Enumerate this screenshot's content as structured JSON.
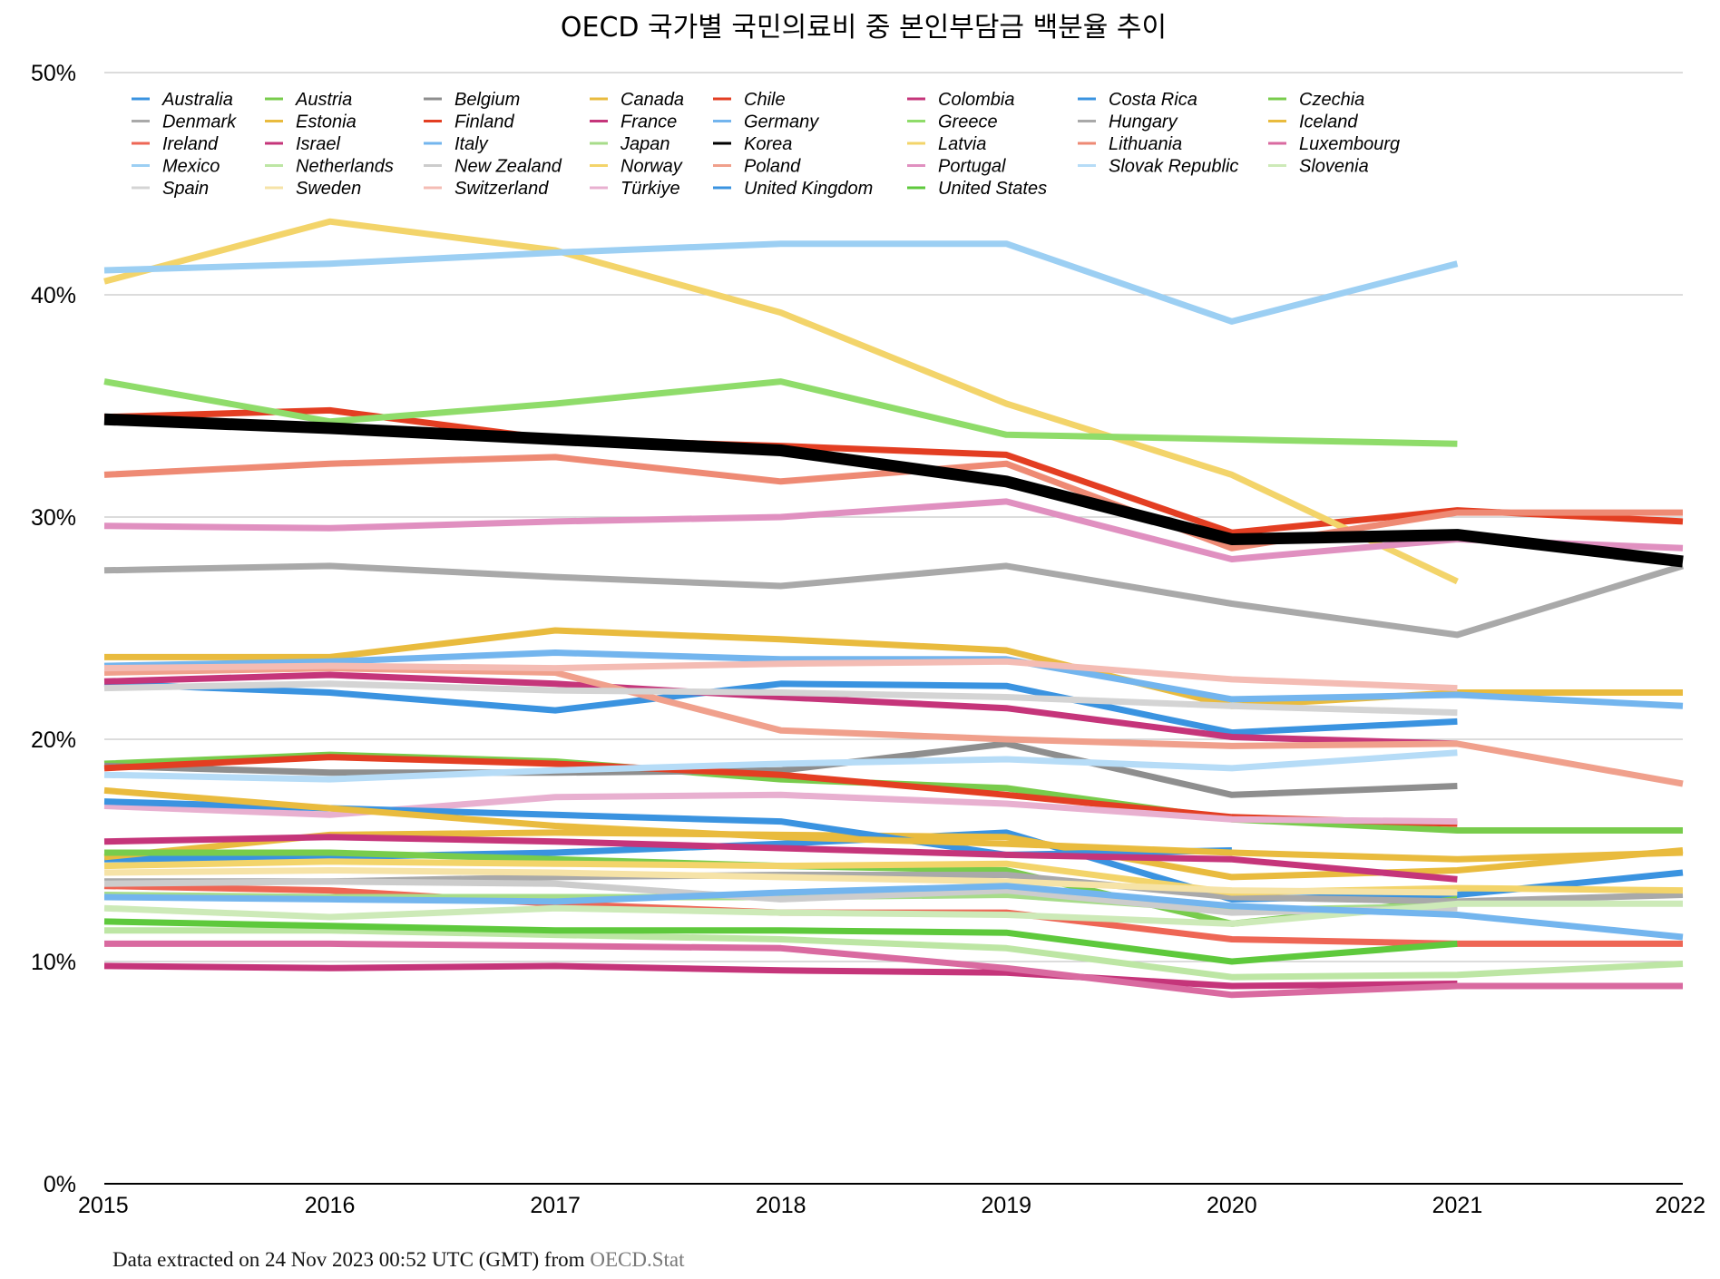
{
  "chart_data": {
    "type": "line",
    "title": "OECD 국가별 국민의료비 중 본인부담금 백분율 추이",
    "x": [
      "2015",
      "2016",
      "2017",
      "2018",
      "2019",
      "2020",
      "2021",
      "2022"
    ],
    "ylim": [
      0,
      50
    ],
    "yticks": [
      "0%",
      "10%",
      "20%",
      "30%",
      "40%",
      "50%"
    ],
    "grid": true,
    "legend_position": "top, 8 columns",
    "series": [
      {
        "name": "Australia",
        "color": "#3a93e0",
        "values": [
          14.6,
          14.7,
          14.9,
          15.3,
          15.8,
          12.8,
          13.0,
          14.0
        ]
      },
      {
        "name": "Austria",
        "color": "#78cc4c",
        "values": [
          18.9,
          19.3,
          19.0,
          18.2,
          17.8,
          16.4,
          15.9,
          15.9
        ]
      },
      {
        "name": "Belgium",
        "color": "#8e8e8e",
        "values": [
          18.8,
          18.5,
          18.5,
          18.6,
          19.8,
          17.5,
          17.9,
          null
        ]
      },
      {
        "name": "Canada",
        "color": "#e9bb3e",
        "values": [
          14.7,
          15.7,
          15.8,
          15.7,
          15.6,
          13.8,
          14.1,
          15.0
        ]
      },
      {
        "name": "Chile",
        "color": "#e33e22",
        "values": [
          34.5,
          34.8,
          33.5,
          33.2,
          32.8,
          29.3,
          30.3,
          29.8
        ]
      },
      {
        "name": "Colombia",
        "color": "#c5357a",
        "values": [
          9.8,
          9.7,
          9.8,
          9.6,
          9.5,
          8.9,
          9.0,
          null
        ]
      },
      {
        "name": "Costa Rica",
        "color": "#3a93e0",
        "values": [
          22.5,
          22.1,
          21.3,
          22.5,
          22.4,
          20.3,
          20.8,
          null
        ]
      },
      {
        "name": "Czechia",
        "color": "#78cc4c",
        "values": [
          14.9,
          14.9,
          14.6,
          14.3,
          14.1,
          11.7,
          12.8,
          null
        ]
      },
      {
        "name": "Denmark",
        "color": "#a9a9a9",
        "values": [
          13.6,
          13.6,
          13.8,
          13.9,
          13.9,
          12.9,
          12.7,
          13.0
        ]
      },
      {
        "name": "Estonia",
        "color": "#e9bb3e",
        "values": [
          23.7,
          23.7,
          24.9,
          24.5,
          24.0,
          21.5,
          22.1,
          22.1
        ]
      },
      {
        "name": "Finland",
        "color": "#e33e22",
        "values": [
          18.7,
          19.2,
          18.9,
          18.4,
          17.5,
          16.5,
          16.2,
          null
        ]
      },
      {
        "name": "Israel",
        "color": "#c5357a",
        "values": [
          22.6,
          22.9,
          22.5,
          21.9,
          21.4,
          20.1,
          19.8,
          null
        ]
      },
      {
        "name": "Ireland",
        "color": "#ee6655",
        "values": [
          13.4,
          13.2,
          12.6,
          12.2,
          12.2,
          11.0,
          10.8,
          10.8
        ]
      },
      {
        "name": "Italy",
        "color": "#73b5ee",
        "values": [
          23.3,
          23.5,
          23.9,
          23.6,
          23.6,
          21.8,
          22.0,
          21.5
        ]
      },
      {
        "name": "Japan",
        "color": "#a7dc8a",
        "values": [
          13.0,
          12.9,
          12.9,
          12.9,
          13.0,
          12.3,
          12.5,
          null
        ]
      },
      {
        "name": "Korea",
        "color": "#000000",
        "values": [
          34.4,
          34.0,
          33.5,
          33.0,
          31.6,
          29.0,
          29.2,
          28.0
        ]
      },
      {
        "name": "Latvia",
        "color": "#f3d46a",
        "values": [
          40.6,
          43.3,
          42.0,
          39.2,
          35.1,
          31.9,
          27.1,
          null
        ]
      },
      {
        "name": "Lithuania",
        "color": "#ee8a74",
        "values": [
          31.9,
          32.4,
          32.7,
          31.6,
          32.4,
          28.6,
          30.2,
          30.2
        ]
      },
      {
        "name": "Luxembourg",
        "color": "#d96aa0",
        "values": [
          10.8,
          10.8,
          10.7,
          10.6,
          9.7,
          8.5,
          8.9,
          8.9
        ]
      },
      {
        "name": "Mexico",
        "color": "#9ccff3",
        "values": [
          41.1,
          41.4,
          41.9,
          42.3,
          42.3,
          38.8,
          41.4,
          null
        ]
      },
      {
        "name": "Netherlands",
        "color": "#bde6a4",
        "values": [
          11.4,
          11.4,
          11.2,
          11.0,
          10.6,
          9.3,
          9.4,
          9.9
        ]
      },
      {
        "name": "New Zealand",
        "color": "#cccccc",
        "values": [
          13.5,
          13.6,
          13.5,
          12.8,
          13.2,
          12.2,
          12.4,
          null
        ]
      },
      {
        "name": "Norway",
        "color": "#f3d46a",
        "values": [
          14.3,
          14.5,
          14.4,
          14.3,
          14.4,
          13.1,
          13.3,
          13.2
        ]
      },
      {
        "name": "Poland",
        "color": "#f0a08c",
        "values": [
          23.0,
          23.2,
          23.0,
          20.4,
          20.0,
          19.7,
          19.8,
          18.0
        ]
      },
      {
        "name": "Portugal",
        "color": "#e090c0",
        "values": [
          29.6,
          29.5,
          29.8,
          30.0,
          30.7,
          28.1,
          29.0,
          28.6
        ]
      },
      {
        "name": "Slovak Republic",
        "color": "#b6dcf7",
        "values": [
          18.4,
          18.2,
          18.6,
          18.9,
          19.1,
          18.7,
          19.4,
          null
        ]
      },
      {
        "name": "Slovenia",
        "color": "#cdeab8",
        "values": [
          12.4,
          12.0,
          12.4,
          12.2,
          12.1,
          11.7,
          12.6,
          12.6
        ]
      },
      {
        "name": "Spain",
        "color": "#d4d4d4",
        "values": [
          22.3,
          22.5,
          22.2,
          22.1,
          21.9,
          21.5,
          21.2,
          null
        ]
      },
      {
        "name": "Sweden",
        "color": "#f6e3a7",
        "values": [
          14.0,
          14.1,
          14.0,
          13.8,
          13.6,
          13.2,
          13.1,
          null
        ]
      },
      {
        "name": "Switzerland",
        "color": "#f4bcb4",
        "values": [
          23.2,
          23.3,
          23.2,
          23.4,
          23.5,
          22.7,
          22.3,
          null
        ]
      },
      {
        "name": "Türkiye",
        "color": "#e8b0d0",
        "values": [
          17.0,
          16.6,
          17.4,
          17.5,
          17.1,
          16.4,
          16.3,
          null
        ]
      },
      {
        "name": "United Kingdom",
        "color": "#3a93e0",
        "values": [
          17.2,
          16.9,
          16.6,
          16.3,
          14.8,
          15.0,
          null,
          null
        ]
      },
      {
        "name": "United States",
        "color": "#5ec93c",
        "values": [
          11.8,
          11.6,
          11.4,
          11.4,
          11.3,
          10.0,
          10.8,
          null
        ]
      },
      {
        "name": "Germany",
        "color": "#73b5ee",
        "values": [
          12.9,
          12.8,
          12.7,
          13.1,
          13.4,
          12.5,
          12.1,
          11.1
        ]
      },
      {
        "name": "Hungary",
        "color": "#a9a9a9",
        "values": [
          27.6,
          27.8,
          27.3,
          26.9,
          27.8,
          26.1,
          24.7,
          27.8
        ]
      },
      {
        "name": "Greece",
        "color": "#8fdc6a",
        "values": [
          36.1,
          34.3,
          35.1,
          36.1,
          33.7,
          33.5,
          33.3,
          null
        ]
      },
      {
        "name": "Iceland",
        "color": "#e9bb3e",
        "values": [
          17.7,
          16.9,
          16.1,
          15.6,
          15.3,
          14.9,
          14.6,
          14.9
        ]
      },
      {
        "name": "France",
        "color": "#c5357a",
        "values": [
          15.4,
          15.6,
          15.4,
          15.1,
          14.8,
          14.6,
          13.7,
          null
        ]
      }
    ],
    "legend_order": [
      "Australia",
      "Austria",
      "Belgium",
      "Canada",
      "Chile",
      "Colombia",
      "Costa Rica",
      "Czechia",
      "Denmark",
      "Estonia",
      "Finland",
      "France",
      "Germany",
      "Greece",
      "Hungary",
      "Iceland",
      "Ireland",
      "Israel",
      "Italy",
      "Japan",
      "Korea",
      "Latvia",
      "Lithuania",
      "Luxembourg",
      "Mexico",
      "Netherlands",
      "New Zealand",
      "Norway",
      "Poland",
      "Portugal",
      "Slovak Republic",
      "Slovenia",
      "Spain",
      "Sweden",
      "Switzerland",
      "Türkiye",
      "United Kingdom",
      "United States"
    ],
    "highlight": "Korea"
  },
  "footer": {
    "source_prefix": "Data extracted on 24 Nov 2023 00:52 UTC (GMT) from ",
    "source_link": "OECD.Stat"
  }
}
